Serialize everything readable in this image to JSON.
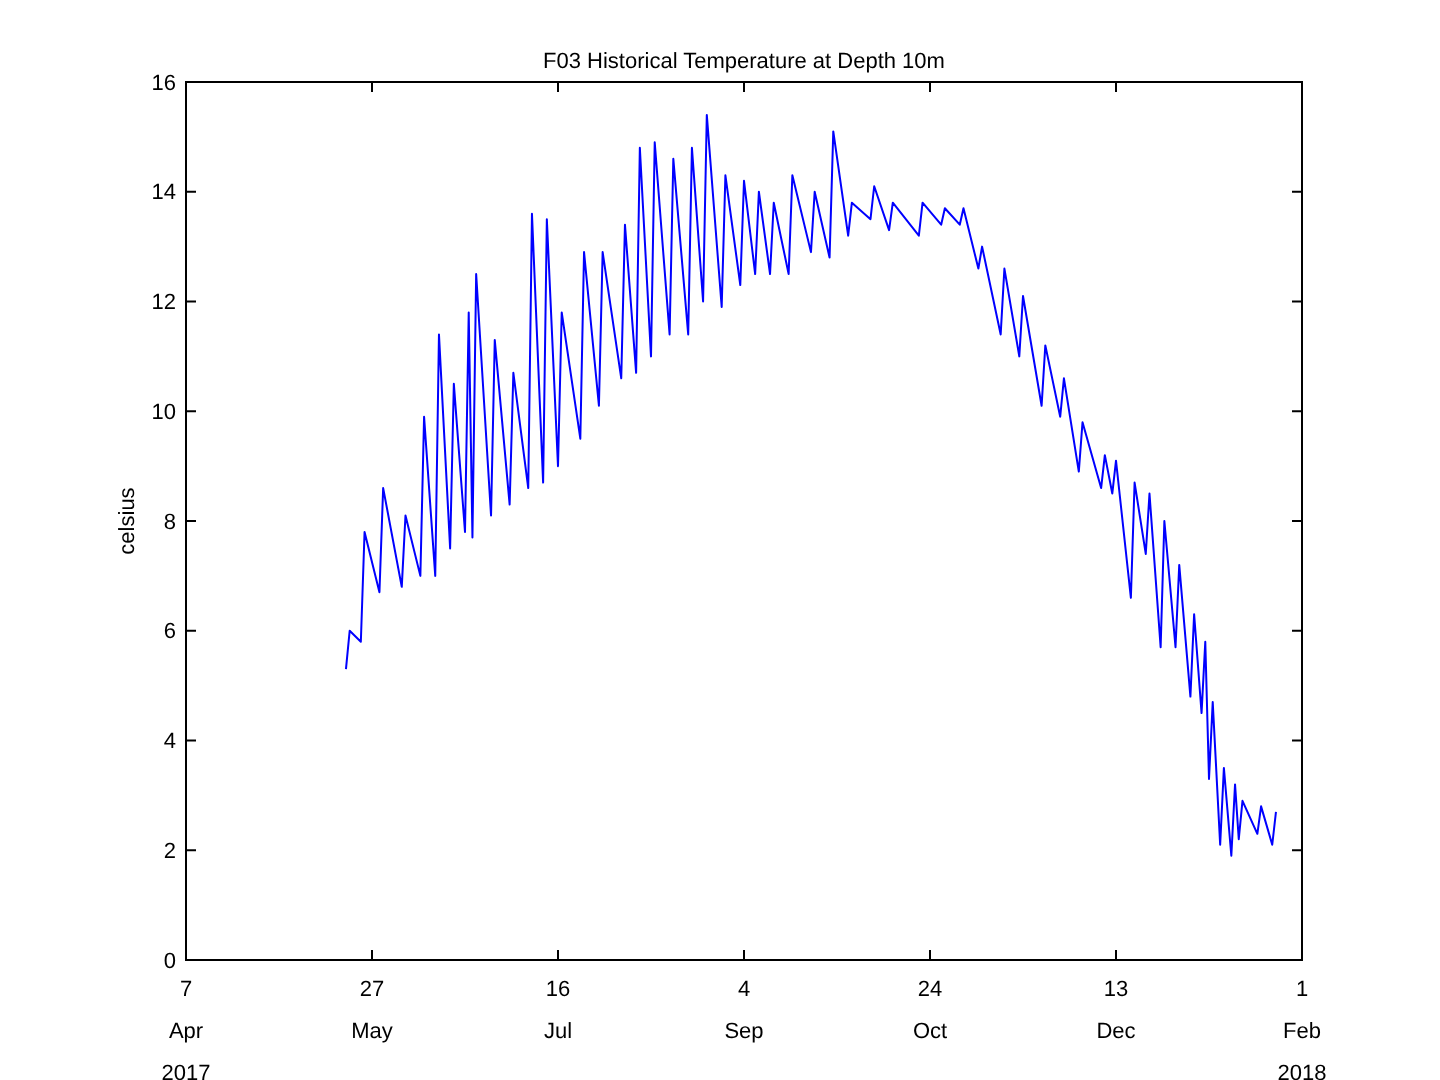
{
  "chart_data": {
    "type": "line",
    "title": "F03 Historical Temperature at Depth 10m",
    "ylabel": "celsius",
    "xlim": [
      "2017-04-07",
      "2018-02-01"
    ],
    "ylim": [
      0,
      16
    ],
    "xticks": [
      {
        "value": "2017-04-07",
        "label": "7\nApr\n2017"
      },
      {
        "value": "2017-05-27",
        "label": "27\nMay"
      },
      {
        "value": "2017-07-16",
        "label": "16\nJul"
      },
      {
        "value": "2017-09-04",
        "label": "4\nSep"
      },
      {
        "value": "2017-10-24",
        "label": "24\nOct"
      },
      {
        "value": "2017-12-13",
        "label": "13\nDec"
      },
      {
        "value": "2018-02-01",
        "label": "1\nFeb\n2018"
      }
    ],
    "yticks": [
      0,
      2,
      4,
      6,
      8,
      10,
      12,
      14,
      16
    ],
    "grid": false,
    "line_style": "solid",
    "marker": "none",
    "series": [
      {
        "color": "#0000ff",
        "x": [
          "2017-05-20",
          "2017-05-21",
          "2017-05-24",
          "2017-05-25",
          "2017-05-29",
          "2017-05-30",
          "2017-06-04",
          "2017-06-05",
          "2017-06-09",
          "2017-06-10",
          "2017-06-13",
          "2017-06-14",
          "2017-06-17",
          "2017-06-18",
          "2017-06-21",
          "2017-06-22",
          "2017-06-23",
          "2017-06-24",
          "2017-06-28",
          "2017-06-29",
          "2017-07-03",
          "2017-07-04",
          "2017-07-08",
          "2017-07-09",
          "2017-07-12",
          "2017-07-13",
          "2017-07-16",
          "2017-07-17",
          "2017-07-22",
          "2017-07-23",
          "2017-07-27",
          "2017-07-28",
          "2017-08-02",
          "2017-08-03",
          "2017-08-06",
          "2017-08-07",
          "2017-08-10",
          "2017-08-11",
          "2017-08-15",
          "2017-08-16",
          "2017-08-20",
          "2017-08-21",
          "2017-08-24",
          "2017-08-25",
          "2017-08-29",
          "2017-08-30",
          "2017-09-03",
          "2017-09-04",
          "2017-09-07",
          "2017-09-08",
          "2017-09-11",
          "2017-09-12",
          "2017-09-16",
          "2017-09-17",
          "2017-09-22",
          "2017-09-23",
          "2017-09-27",
          "2017-09-28",
          "2017-10-02",
          "2017-10-03",
          "2017-10-08",
          "2017-10-09",
          "2017-10-13",
          "2017-10-14",
          "2017-10-21",
          "2017-10-22",
          "2017-10-27",
          "2017-10-28",
          "2017-11-01",
          "2017-11-02",
          "2017-11-06",
          "2017-11-07",
          "2017-11-12",
          "2017-11-13",
          "2017-11-17",
          "2017-11-18",
          "2017-11-23",
          "2017-11-24",
          "2017-11-28",
          "2017-11-29",
          "2017-12-03",
          "2017-12-04",
          "2017-12-09",
          "2017-12-10",
          "2017-12-12",
          "2017-12-13",
          "2017-12-17",
          "2017-12-18",
          "2017-12-21",
          "2017-12-22",
          "2017-12-25",
          "2017-12-26",
          "2017-12-29",
          "2017-12-30",
          "2018-01-02",
          "2018-01-03",
          "2018-01-05",
          "2018-01-06",
          "2018-01-07",
          "2018-01-08",
          "2018-01-10",
          "2018-01-11",
          "2018-01-13",
          "2018-01-14",
          "2018-01-15",
          "2018-01-16",
          "2018-01-20",
          "2018-01-21",
          "2018-01-24",
          "2018-01-25"
        ],
        "values": [
          5.3,
          6.0,
          5.8,
          7.8,
          6.7,
          8.6,
          6.8,
          8.1,
          7.0,
          9.9,
          7.0,
          11.4,
          7.5,
          10.5,
          7.8,
          11.8,
          7.7,
          12.5,
          8.1,
          11.3,
          8.3,
          10.7,
          8.6,
          13.6,
          8.7,
          13.5,
          9.0,
          11.8,
          9.5,
          12.9,
          10.1,
          12.9,
          10.6,
          13.4,
          10.7,
          14.8,
          11.0,
          14.9,
          11.4,
          14.6,
          11.4,
          14.8,
          12.0,
          15.4,
          11.9,
          14.3,
          12.3,
          14.2,
          12.5,
          14.0,
          12.5,
          13.8,
          12.5,
          14.3,
          12.9,
          14.0,
          12.8,
          15.1,
          13.2,
          13.8,
          13.5,
          14.1,
          13.3,
          13.8,
          13.2,
          13.8,
          13.4,
          13.7,
          13.4,
          13.7,
          12.6,
          13.0,
          11.4,
          12.6,
          11.0,
          12.1,
          10.1,
          11.2,
          9.9,
          10.6,
          8.9,
          9.8,
          8.6,
          9.2,
          8.5,
          9.1,
          6.6,
          8.7,
          7.4,
          8.5,
          5.7,
          8.0,
          5.7,
          7.2,
          4.8,
          6.3,
          4.5,
          5.8,
          3.3,
          4.7,
          2.1,
          3.5,
          1.9,
          3.2,
          2.2,
          2.9,
          2.3,
          2.8,
          2.1,
          2.7
        ]
      }
    ]
  }
}
